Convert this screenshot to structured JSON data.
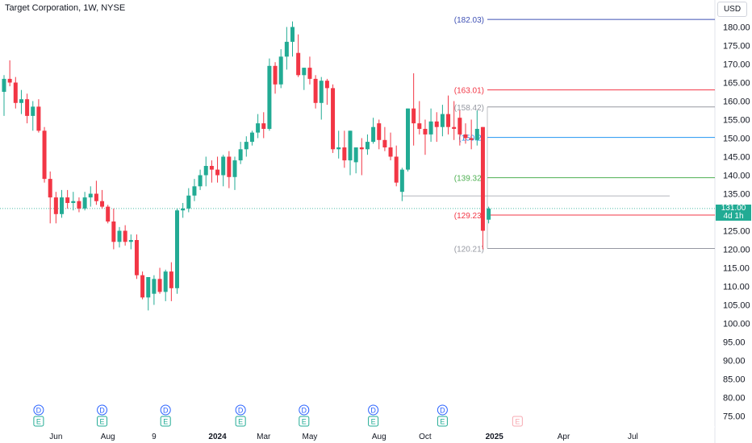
{
  "header": {
    "title": "Target Corporation, 1W, NYSE",
    "currency": "USD"
  },
  "price_tag": {
    "value": "131.00",
    "countdown": "4d 1h",
    "color": "#22ab94"
  },
  "chart_data": {
    "type": "candlestick",
    "title": "Target Corporation, 1W, NYSE",
    "ylim": [
      72,
      186
    ],
    "y_ticks": [
      75,
      80,
      85,
      90,
      95,
      100,
      105,
      110,
      115,
      120,
      125,
      130,
      135,
      140,
      145,
      150,
      155,
      160,
      165,
      170,
      175,
      180
    ],
    "x_labels": [
      {
        "text": "Jun",
        "bar": 9,
        "bold": false
      },
      {
        "text": "Aug",
        "bar": 18,
        "bold": false
      },
      {
        "text": "9",
        "bar": 26,
        "bold": false
      },
      {
        "text": "2024",
        "bar": 37,
        "bold": true
      },
      {
        "text": "Mar",
        "bar": 45,
        "bold": false
      },
      {
        "text": "May",
        "bar": 53,
        "bold": false
      },
      {
        "text": "Aug",
        "bar": 65,
        "bold": false
      },
      {
        "text": "Oct",
        "bar": 73,
        "bold": false
      },
      {
        "text": "2025",
        "bar": 85,
        "bold": true
      },
      {
        "text": "Apr",
        "bar": 97,
        "bold": false
      },
      {
        "text": "Jul",
        "bar": 109,
        "bold": false
      }
    ],
    "colors": {
      "up": "#22ab94",
      "down": "#f23645"
    },
    "candles": [
      [
        162.5,
        167.0,
        156.0,
        166.0
      ],
      [
        166.0,
        171.0,
        164.0,
        165.0
      ],
      [
        165.0,
        166.5,
        158.0,
        159.5
      ],
      [
        159.5,
        163.0,
        156.5,
        160.5
      ],
      [
        160.5,
        162.0,
        154.0,
        156.0
      ],
      [
        156.0,
        160.0,
        152.0,
        158.5
      ],
      [
        158.5,
        160.5,
        151.5,
        152.0
      ],
      [
        152.0,
        153.0,
        138.0,
        139.0
      ],
      [
        139.0,
        141.0,
        127.0,
        134.0
      ],
      [
        134.0,
        135.5,
        127.0,
        129.5
      ],
      [
        129.5,
        136.0,
        128.5,
        134.0
      ],
      [
        134.0,
        136.0,
        131.0,
        132.5
      ],
      [
        132.5,
        135.5,
        130.5,
        133.0
      ],
      [
        133.0,
        134.0,
        130.0,
        131.0
      ],
      [
        131.0,
        135.5,
        130.5,
        134.0
      ],
      [
        134.0,
        137.0,
        131.5,
        135.0
      ],
      [
        135.0,
        138.5,
        132.0,
        133.0
      ],
      [
        133.0,
        136.0,
        131.0,
        131.5
      ],
      [
        131.5,
        132.0,
        127.0,
        127.5
      ],
      [
        127.5,
        131.0,
        120.0,
        122.0
      ],
      [
        122.0,
        126.0,
        120.5,
        125.0
      ],
      [
        125.0,
        126.5,
        121.0,
        122.0
      ],
      [
        122.0,
        124.0,
        120.0,
        122.5
      ],
      [
        122.5,
        124.0,
        112.0,
        113.0
      ],
      [
        113.0,
        114.0,
        106.5,
        107.0
      ],
      [
        107.0,
        112.0,
        103.5,
        112.5
      ],
      [
        108.0,
        113.0,
        105.0,
        112.0
      ],
      [
        112.0,
        115.0,
        108.0,
        108.5
      ],
      [
        108.5,
        114.5,
        106.0,
        114.0
      ],
      [
        114.0,
        116.5,
        106.0,
        109.5
      ],
      [
        109.5,
        131.0,
        108.0,
        130.5
      ],
      [
        130.5,
        132.5,
        128.5,
        131.0
      ],
      [
        131.0,
        136.5,
        130.0,
        134.5
      ],
      [
        134.5,
        139.0,
        133.0,
        137.0
      ],
      [
        137.0,
        141.5,
        136.0,
        140.0
      ],
      [
        140.0,
        145.0,
        137.0,
        142.5
      ],
      [
        142.5,
        144.0,
        138.0,
        141.5
      ],
      [
        141.5,
        145.0,
        138.0,
        140.0
      ],
      [
        140.0,
        145.5,
        137.0,
        145.0
      ],
      [
        145.0,
        146.5,
        136.5,
        139.5
      ],
      [
        139.5,
        145.0,
        136.0,
        144.0
      ],
      [
        144.0,
        149.0,
        143.0,
        147.0
      ],
      [
        147.0,
        150.5,
        145.0,
        149.0
      ],
      [
        149.0,
        152.0,
        148.0,
        151.5
      ],
      [
        151.5,
        156.5,
        150.0,
        154.0
      ],
      [
        154.0,
        157.0,
        150.0,
        152.5
      ],
      [
        152.5,
        171.5,
        152.0,
        169.5
      ],
      [
        169.5,
        170.5,
        162.0,
        164.5
      ],
      [
        164.5,
        174.0,
        163.5,
        172.0
      ],
      [
        172.0,
        180.0,
        168.5,
        176.0
      ],
      [
        176.0,
        181.5,
        172.0,
        180.0
      ],
      [
        173.0,
        178.0,
        166.5,
        167.0
      ],
      [
        167.0,
        169.0,
        163.0,
        169.0
      ],
      [
        169.0,
        172.0,
        164.5,
        166.0
      ],
      [
        166.0,
        167.0,
        158.0,
        159.5
      ],
      [
        159.5,
        166.5,
        155.0,
        165.5
      ],
      [
        165.5,
        166.0,
        159.0,
        163.5
      ],
      [
        163.5,
        164.5,
        146.0,
        147.0
      ],
      [
        147.0,
        152.0,
        144.5,
        147.5
      ],
      [
        147.5,
        152.0,
        142.0,
        144.0
      ],
      [
        144.0,
        152.0,
        140.0,
        152.0
      ],
      [
        143.5,
        147.0,
        140.5,
        147.5
      ],
      [
        147.5,
        150.0,
        140.0,
        147.0
      ],
      [
        147.0,
        151.0,
        145.5,
        149.0
      ],
      [
        149.0,
        155.5,
        148.5,
        153.0
      ],
      [
        154.0,
        155.0,
        147.0,
        149.5
      ],
      [
        149.5,
        153.0,
        146.5,
        147.5
      ],
      [
        147.5,
        151.5,
        144.0,
        145.0
      ],
      [
        145.0,
        148.0,
        137.0,
        138.0
      ],
      [
        135.5,
        142.0,
        133.0,
        141.5
      ],
      [
        141.5,
        158.0,
        141.0,
        158.0
      ],
      [
        158.0,
        167.5,
        148.0,
        154.0
      ],
      [
        154.0,
        160.0,
        151.0,
        152.5
      ],
      [
        152.5,
        155.0,
        145.5,
        151.0
      ],
      [
        151.0,
        158.0,
        149.0,
        154.5
      ],
      [
        154.5,
        157.0,
        149.0,
        153.0
      ],
      [
        153.0,
        159.0,
        150.5,
        156.5
      ],
      [
        156.5,
        161.5,
        151.0,
        153.0
      ],
      [
        153.0,
        160.0,
        149.5,
        152.5
      ],
      [
        155.5,
        157.5,
        148.0,
        151.0
      ],
      [
        151.0,
        154.0,
        148.5,
        150.0
      ],
      [
        150.0,
        155.0,
        147.0,
        149.5
      ],
      [
        149.5,
        157.5,
        148.0,
        152.5
      ],
      [
        153.0,
        153.0,
        120.0,
        125.0
      ],
      [
        128.0,
        131.5,
        127.0,
        131.0
      ]
    ],
    "fib_levels": [
      {
        "label": "(182.03)",
        "value": 182.03,
        "color": "#3f51b5"
      },
      {
        "label": "(163.01)",
        "value": 163.01,
        "color": "#f23645"
      },
      {
        "label": "(158.42)",
        "value": 158.42,
        "color": "#9598a1"
      },
      {
        "label": "(150.2)",
        "value": 150.2,
        "color": "#2196f3"
      },
      {
        "label": "(139.32)",
        "value": 139.32,
        "color": "#4caf50"
      },
      {
        "label": "(129.23)",
        "value": 129.23,
        "color": "#f23645"
      },
      {
        "label": "(120.21)",
        "value": 120.21,
        "color": "#9598a1"
      }
    ],
    "reference_lines": [
      {
        "value": 134.4,
        "color": "#9598a1"
      }
    ],
    "last_price_line": {
      "value": 131.0,
      "color": "#22ab94"
    },
    "events": [
      {
        "bar": 6,
        "letters": [
          "D",
          "E"
        ]
      },
      {
        "bar": 17,
        "letters": [
          "D",
          "E"
        ]
      },
      {
        "bar": 28,
        "letters": [
          "D",
          "E"
        ]
      },
      {
        "bar": 41,
        "letters": [
          "D",
          "E"
        ]
      },
      {
        "bar": 52,
        "letters": [
          "D",
          "E"
        ]
      },
      {
        "bar": 64,
        "letters": [
          "D",
          "E"
        ]
      },
      {
        "bar": 76,
        "letters": [
          "D",
          "E"
        ]
      },
      {
        "bar": 89,
        "letters": [
          "E"
        ]
      }
    ],
    "grid": false
  }
}
